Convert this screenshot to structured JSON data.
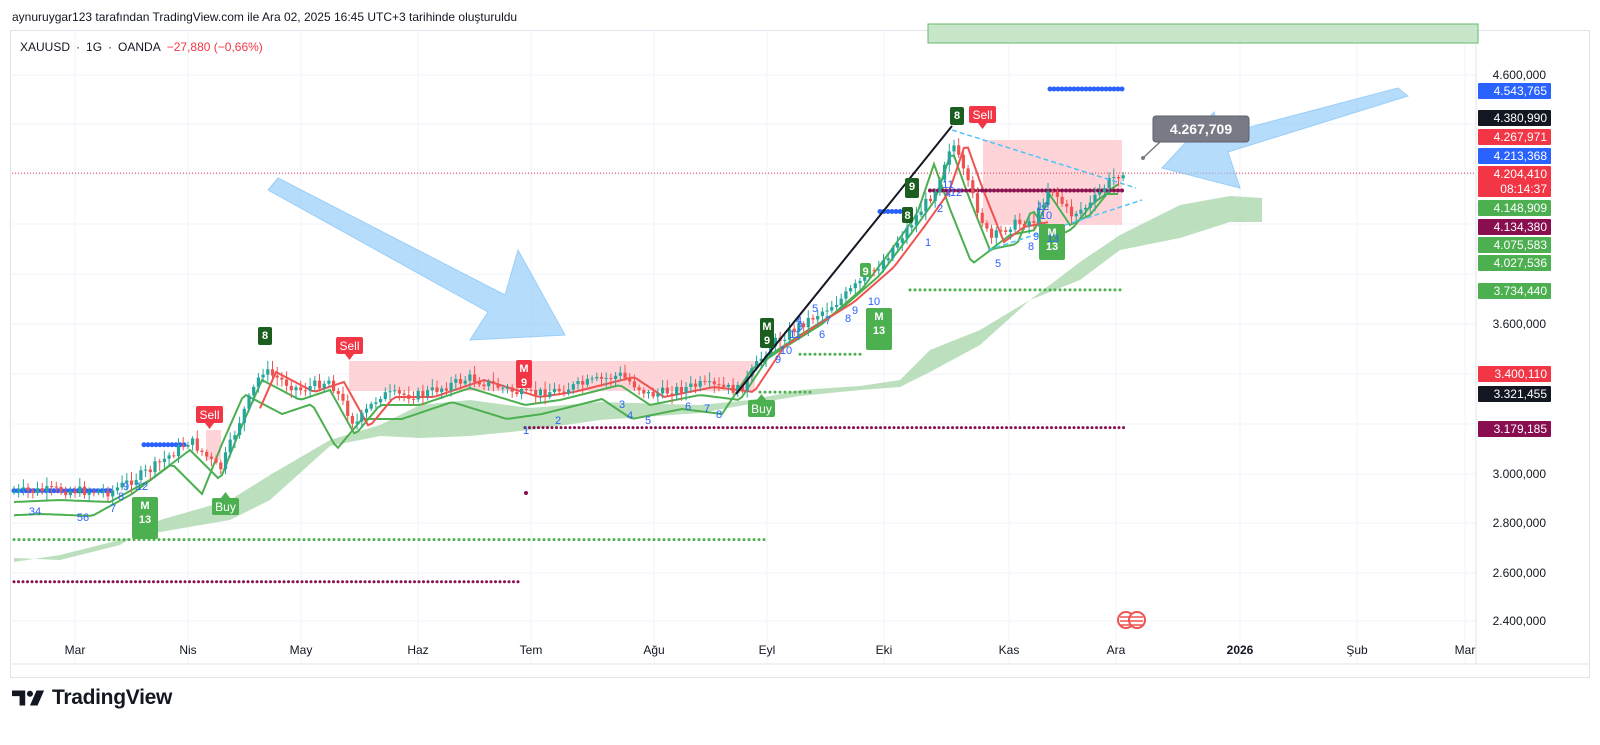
{
  "header": {
    "attribution": "aynuruygar123 tarafından TradingView.com ile Ara 02, 2025 16:45 UTC+3 tarihinde oluşturuldu"
  },
  "legend": {
    "symbol": "XAUUSD",
    "separator": "·",
    "interval": "1G",
    "broker": "OANDA",
    "change": "−27,880 (−0,66%)",
    "change_color": "#f23645"
  },
  "brand": {
    "logo_icon": "tradingview-logo-icon",
    "name": "TradingView"
  },
  "chart_data": {
    "type": "candlestick",
    "x_ticks": [
      "Mar",
      "Nis",
      "May",
      "Haz",
      "Tem",
      "Ağu",
      "Eyl",
      "Eki",
      "Kas",
      "Ara",
      "2026",
      "Şub",
      "Mar"
    ],
    "y_ticks": [
      "4.600,000",
      "3.600,000",
      "3.000,000",
      "2.800,000",
      "2.600,000",
      "2.400,000"
    ],
    "ylim": [
      2360,
      4740
    ],
    "grid": true,
    "price_line": {
      "value": 4204.41,
      "color": "#f23645"
    },
    "price_tags": [
      {
        "text": "4.543,765",
        "color": "#2962ff",
        "value": 4543.765
      },
      {
        "text": "4.380,990",
        "color": "#131722",
        "value": 4380.99
      },
      {
        "text": "4.267,971",
        "color": "#f23645",
        "value": 4267.971
      },
      {
        "text": "4.213,368",
        "color": "#2962ff",
        "value": 4213.368
      },
      {
        "text": "4.204,410",
        "color": "#f23645",
        "value": 4204.41
      },
      {
        "text": "08:14:37",
        "color": "#f23645",
        "value": 4180
      },
      {
        "text": "4.148,909",
        "color": "#4caf50",
        "value": 4148.909
      },
      {
        "text": "4.134,380",
        "color": "#880e4f",
        "value": 4134.38
      },
      {
        "text": "4.075,583",
        "color": "#4caf50",
        "value": 4075.583
      },
      {
        "text": "4.027,536",
        "color": "#4caf50",
        "value": 4027.536
      },
      {
        "text": "3.734,440",
        "color": "#4caf50",
        "value": 3734.44
      },
      {
        "text": "3.400,110",
        "color": "#f23645",
        "value": 3400.11
      },
      {
        "text": "3.321,455",
        "color": "#131722",
        "value": 3321.455
      },
      {
        "text": "3.179,185",
        "color": "#880e4f",
        "value": 3179.185
      }
    ],
    "callout": "4.267,709",
    "signals": [
      "Sell",
      "Sell",
      "Sell",
      "Buy",
      "Buy"
    ],
    "td_labels": [
      "8",
      "8",
      "M\n13",
      "M\n13",
      "M\n13",
      "M\n9",
      "M\n9",
      "9",
      "9",
      "8"
    ],
    "counts": [
      "34",
      "56",
      "7",
      "8",
      "9",
      "12",
      "1",
      "2",
      "3",
      "4",
      "5",
      "6",
      "7",
      "8",
      "9",
      "10",
      "11",
      "3",
      "4",
      "5",
      "6",
      "7",
      "8",
      "9",
      "10",
      "11",
      "12",
      "1",
      "2",
      "4",
      "5",
      "8",
      "9",
      "10",
      "12",
      "13"
    ],
    "colors": {
      "bull": "#26a69a",
      "bear": "#ef5350",
      "cloud": "#a5d6a7",
      "ma_red": "#ef5350",
      "ma_green": "#4caf50",
      "blue_dots": "#2962ff",
      "purple_dots": "#880e4f",
      "arrow": "#90caf9",
      "sell": "#f23645",
      "buy": "#4caf50",
      "td_dark": "#1b5e20"
    }
  }
}
